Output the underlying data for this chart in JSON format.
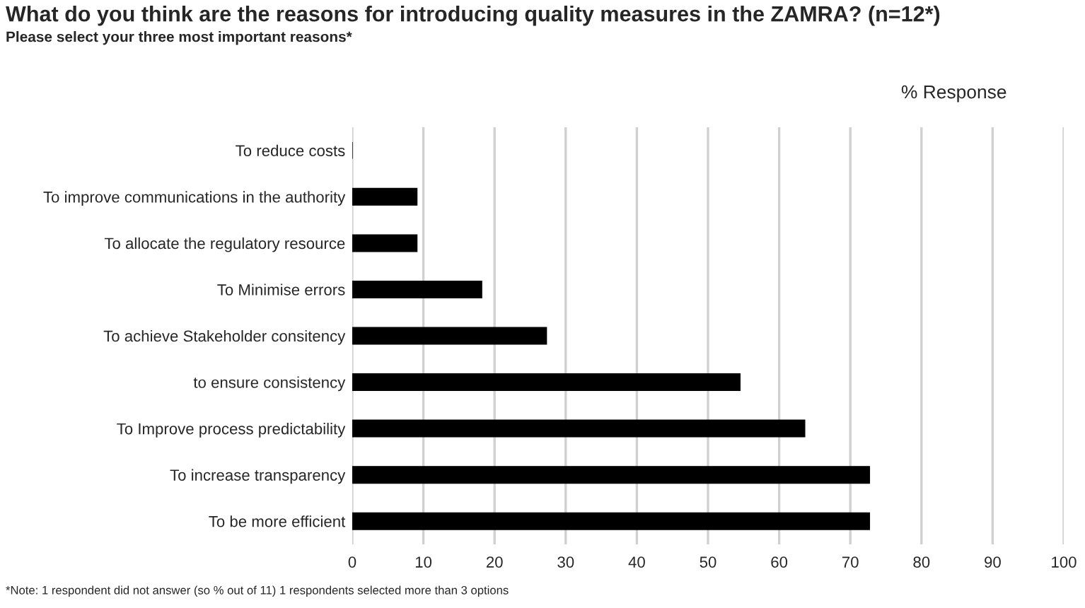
{
  "chart_data": {
    "type": "bar",
    "orientation": "horizontal",
    "title": "What do you think are the reasons for introducing quality measures in the ZAMRA? (n=12*)",
    "subtitle": "Please select your three most important reasons*",
    "xlabel": "% Response",
    "categories": [
      "To reduce costs",
      "To improve communications in the authority",
      "To allocate the regulatory resource",
      "To Minimise errors",
      "To achieve Stakeholder consitency",
      "to ensure consistency",
      "To Improve process predictability",
      "To increase transparency",
      "To be more efficient"
    ],
    "values": [
      0,
      9.1,
      9.1,
      18.2,
      27.3,
      54.5,
      63.6,
      72.7,
      72.7
    ],
    "color": "#000000",
    "xlim": [
      0,
      100
    ],
    "xticks": [
      0,
      10,
      20,
      30,
      40,
      50,
      60,
      70,
      80,
      90,
      100
    ],
    "grid": "x",
    "annotations": [
      "*Note: 1 respondent did not answer (so % out of 11) 1 respondents selected more than 3 options"
    ]
  }
}
